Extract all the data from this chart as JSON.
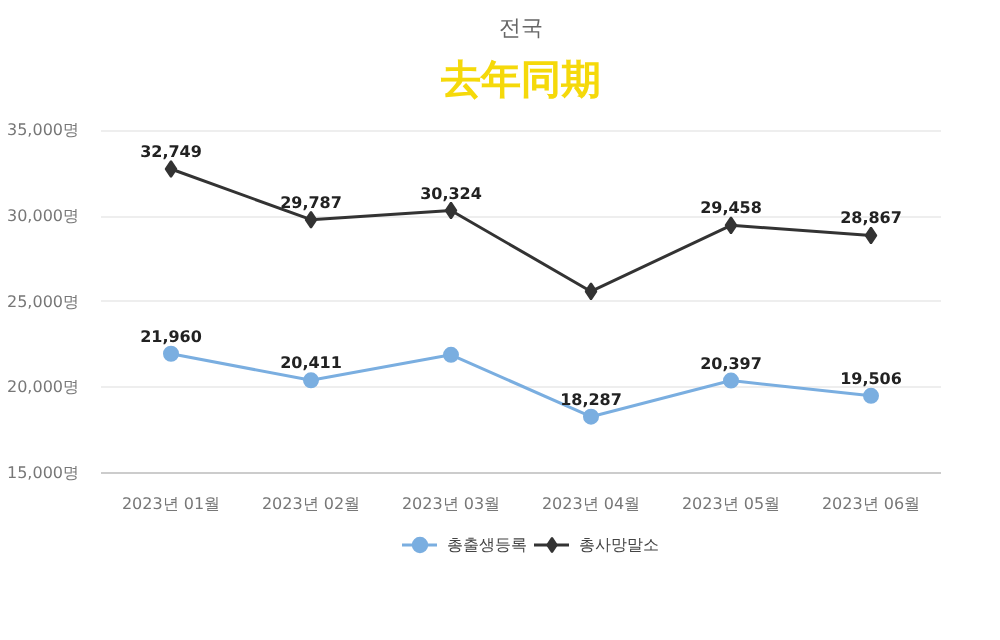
{
  "chart_data": {
    "type": "line",
    "title": "전국",
    "annotations": [
      "去年同期"
    ],
    "categories": [
      "2023년 01월",
      "2023년 02월",
      "2023년 03월",
      "2023년 04월",
      "2023년 05월",
      "2023년 06월"
    ],
    "series": [
      {
        "name": "총출생등록",
        "color": "#7aaee0",
        "marker": "circle",
        "values": [
          21960,
          20411,
          21900,
          18287,
          20397,
          19506
        ],
        "value_labels": [
          "21,960",
          "20,411",
          null,
          "18,287",
          "20,397",
          "19,506"
        ]
      },
      {
        "name": "총사망말소",
        "color": "#333333",
        "marker": "diamond",
        "values": [
          32749,
          29787,
          30324,
          25600,
          29458,
          28867
        ],
        "value_labels": [
          "32,749",
          "29,787",
          "30,324",
          null,
          "29,458",
          "28,867"
        ]
      }
    ],
    "ylim": [
      15000,
      35000
    ],
    "yticks": [
      {
        "value": 15000,
        "label": "15,000명"
      },
      {
        "value": 20000,
        "label": "20,000명"
      },
      {
        "value": 25000,
        "label": "25,000명"
      },
      {
        "value": 30000,
        "label": "30,000명"
      },
      {
        "value": 35000,
        "label": "35,000명"
      }
    ],
    "grid": "y",
    "legend": "bottom"
  }
}
